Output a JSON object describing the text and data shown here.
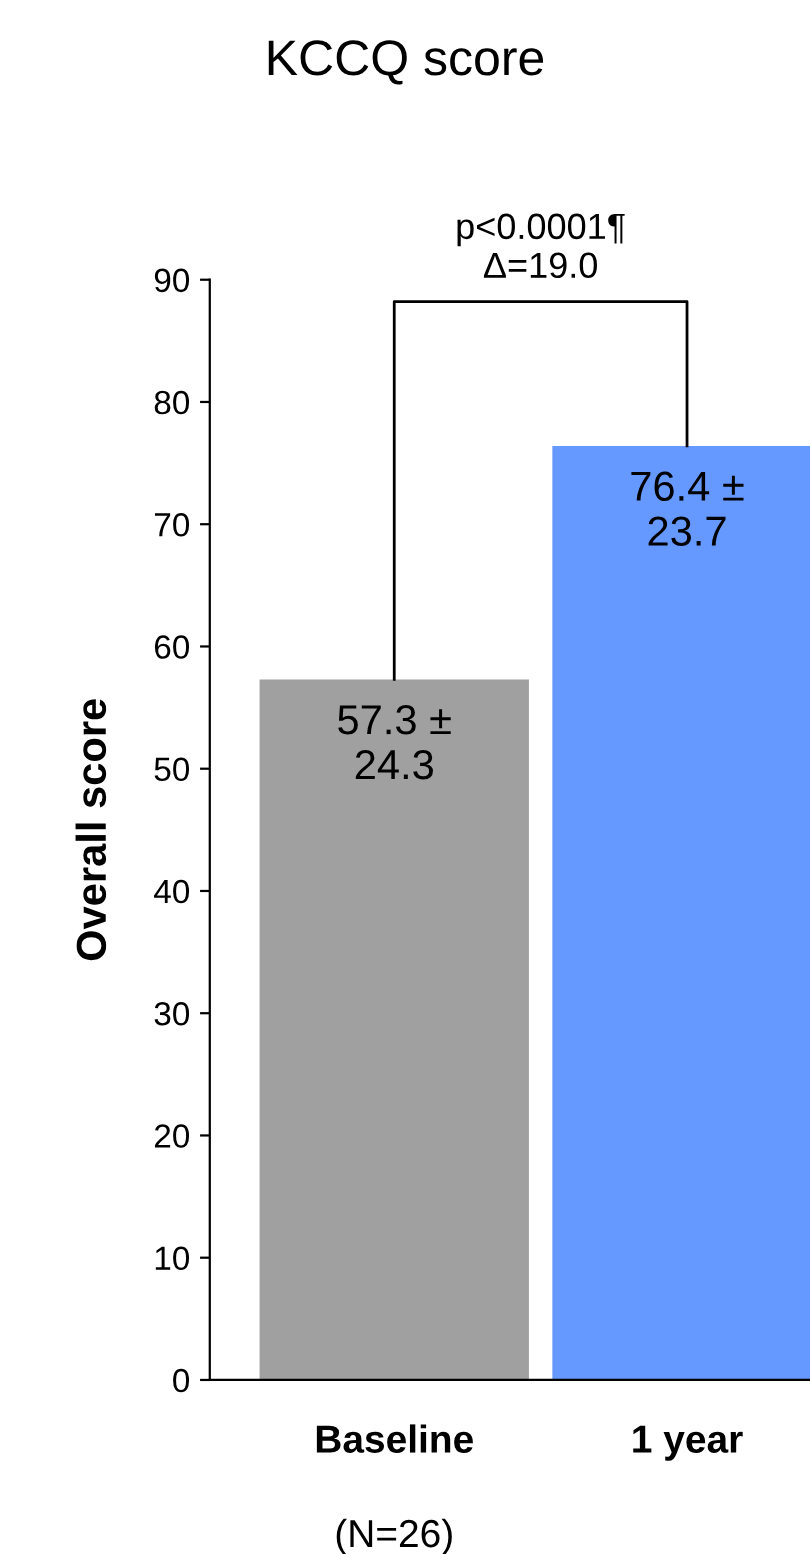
{
  "chart_data": {
    "type": "bar",
    "title": "KCCQ score",
    "ylabel": "Overall score",
    "categories": [
      "Baseline",
      "1 year"
    ],
    "values": [
      57.3,
      76.4
    ],
    "colors": [
      "#a0a0a0",
      "#6699ff"
    ],
    "value_labels": [
      "57.3 ±\n24.3",
      "76.4 ±\n23.7"
    ],
    "annotations": [
      "p<0.0001¶\nΔ=19.0",
      "(N=26)"
    ],
    "ylim": [
      0,
      90
    ],
    "yticks": [
      0,
      10,
      20,
      30,
      40,
      50,
      60,
      70,
      80,
      90
    ],
    "grid": false,
    "legend": false
  }
}
